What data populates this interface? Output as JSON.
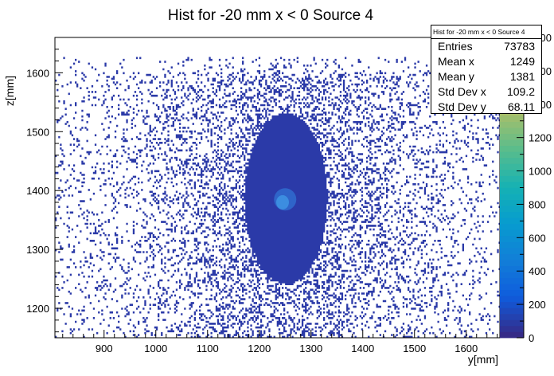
{
  "colors": {
    "background": "#ffffff",
    "low": "#2b3aa8",
    "mid": "#2f64c9",
    "core": "#3c8de0"
  },
  "chart_data": {
    "type": "heatmap",
    "title": "Hist for -20 mm x < 0 Source 4",
    "xlabel": "y[mm]",
    "ylabel": "z[mm]",
    "xlim": [
      805,
      1665
    ],
    "ylim": [
      1150,
      1660
    ],
    "xticks": [
      900,
      1000,
      1100,
      1200,
      1300,
      1400,
      1500,
      1600
    ],
    "yticks": [
      1200,
      1300,
      1400,
      1500,
      1600
    ],
    "center": {
      "x": 1250,
      "y": 1385
    },
    "dense_region": {
      "x": [
        1170,
        1330
      ],
      "y": [
        1240,
        1530
      ]
    },
    "occupied_band_y": [
      1150,
      1625
    ],
    "colorbar": {
      "min": 0,
      "max": 1800,
      "ticks": [
        0,
        200,
        400,
        600,
        800,
        1000,
        1200,
        1400,
        1600,
        1800
      ],
      "palette": "kBird"
    },
    "stats": {
      "title": "Hist for -20 mm x < 0 Source 4",
      "rows": [
        {
          "label": "Entries",
          "value": "73783"
        },
        {
          "label": "Mean x",
          "value": "1249"
        },
        {
          "label": "Mean y",
          "value": "1381"
        },
        {
          "label": "Std Dev x",
          "value": "109.2"
        },
        {
          "label": "Std Dev y",
          "value": "68.11"
        }
      ]
    }
  }
}
